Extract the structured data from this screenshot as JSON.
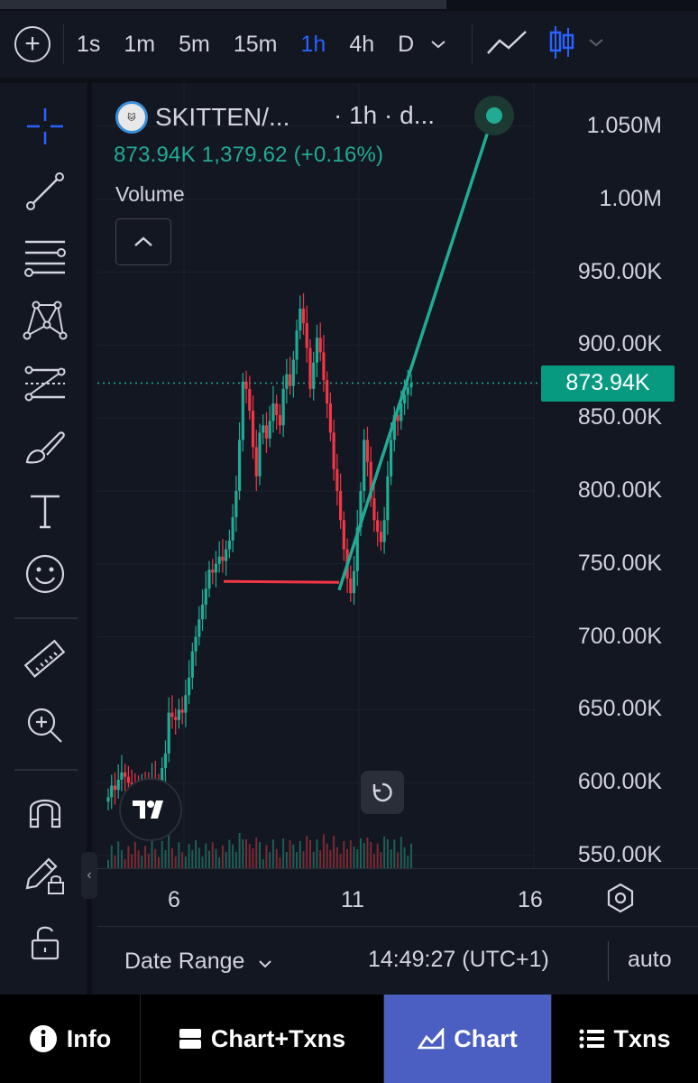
{
  "toolbar": {
    "timeframes": [
      "1s",
      "1m",
      "5m",
      "15m",
      "1h",
      "4h",
      "D"
    ],
    "active_timeframe": "1h"
  },
  "legend": {
    "symbol": "SKITTEN/...",
    "resolution": "· 1h · d...",
    "values": "873.94K  1,379.62 (+0.16%)",
    "volume_label": "Volume",
    "logo_text": "SKITTEN"
  },
  "price_axis": {
    "labels": [
      "1.050M",
      "1.00M",
      "950.00K",
      "900.00K",
      "850.00K",
      "800.00K",
      "750.00K",
      "700.00K",
      "650.00K",
      "600.00K",
      "550.00K"
    ],
    "current_price": "873.94K"
  },
  "time_axis": {
    "labels": [
      "6",
      "11",
      "16"
    ]
  },
  "bottom": {
    "date_range": "Date Range",
    "clock": "14:49:27 (UTC+1)",
    "scale_mode": "auto"
  },
  "nav": {
    "info": "Info",
    "chart_txns": "Chart+Txns",
    "chart": "Chart",
    "txns": "Txns"
  },
  "colors": {
    "up": "#22ab94",
    "down": "#f23645",
    "accent": "#2962ff",
    "nav_active": "#4a5fc1"
  },
  "chart_data": {
    "type": "candlestick",
    "price_range": [
      540000,
      1060000
    ],
    "last_price": 873940,
    "series_close": [
      590000,
      598000,
      595000,
      602000,
      607000,
      604000,
      600000,
      596000,
      593000,
      591000,
      600000,
      598000,
      595000,
      603000,
      600000,
      597000,
      610000,
      620000,
      648000,
      645000,
      643000,
      650000,
      648000,
      660000,
      672000,
      690000,
      700000,
      712000,
      722000,
      733000,
      746000,
      744000,
      750000,
      755000,
      752000,
      760000,
      766000,
      782000,
      800000,
      835000,
      875000,
      870000,
      855000,
      830000,
      810000,
      840000,
      845000,
      836000,
      848000,
      860000,
      852000,
      845000,
      870000,
      880000,
      872000,
      890000,
      910000,
      925000,
      915000,
      898000,
      870000,
      888000,
      905000,
      895000,
      876000,
      860000,
      840000,
      815000,
      800000,
      780000,
      760000,
      740000,
      730000,
      745000,
      775000,
      800000,
      835000,
      820000,
      795000,
      780000,
      772000,
      765000,
      780000,
      810000,
      835000,
      852000,
      848000,
      860000,
      866000,
      871000,
      874000
    ],
    "drawings": [
      {
        "type": "horizontal-segment",
        "color": "#f23645",
        "price": 738000
      },
      {
        "type": "trend-line",
        "color": "#22ab94",
        "from_price": 732000,
        "to_price": 1000000
      }
    ]
  }
}
